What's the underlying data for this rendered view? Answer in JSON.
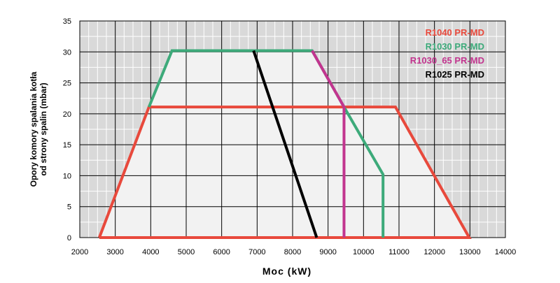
{
  "chart_data": {
    "type": "line",
    "xlabel": "Moc (kW)",
    "ylabel": [
      "Opory komory spalania kotła",
      "od strony spalin (mbar)"
    ],
    "xlim": [
      2000,
      14000
    ],
    "ylim": [
      0,
      35
    ],
    "x_ticks": [
      2000,
      3000,
      4000,
      5000,
      6000,
      7000,
      8000,
      9000,
      10000,
      11000,
      12000,
      13000,
      14000
    ],
    "y_ticks": [
      0,
      5,
      10,
      15,
      20,
      25,
      30,
      35
    ],
    "grid": true,
    "legend_position": "top-right",
    "colors": {
      "plot_background": "#d9d9d9",
      "grid_major": "#000000",
      "envelope_fill": "#f2f2f2"
    },
    "series": [
      {
        "name": "R1040 PR-MD",
        "color": "#e8493c",
        "points": [
          [
            2550,
            0
          ],
          [
            3950,
            21.1
          ],
          [
            10900,
            21.1
          ],
          [
            12980,
            0
          ],
          [
            2550,
            0
          ]
        ]
      },
      {
        "name": "R1030 PR-MD",
        "color": "#3daa7a",
        "points": [
          [
            3950,
            21.1
          ],
          [
            4600,
            30.2
          ],
          [
            8550,
            30.2
          ],
          [
            9450,
            21.1
          ],
          [
            10550,
            10.2
          ],
          [
            10550,
            0
          ]
        ]
      },
      {
        "name": "R1030_65 PR-MD",
        "color": "#c2358f",
        "points": [
          [
            8550,
            30.2
          ],
          [
            9450,
            21.1
          ],
          [
            9450,
            0
          ]
        ]
      },
      {
        "name": "R1025 PR-MD",
        "color": "#000000",
        "points": [
          [
            6900,
            30.2
          ],
          [
            8680,
            0
          ]
        ]
      }
    ]
  }
}
